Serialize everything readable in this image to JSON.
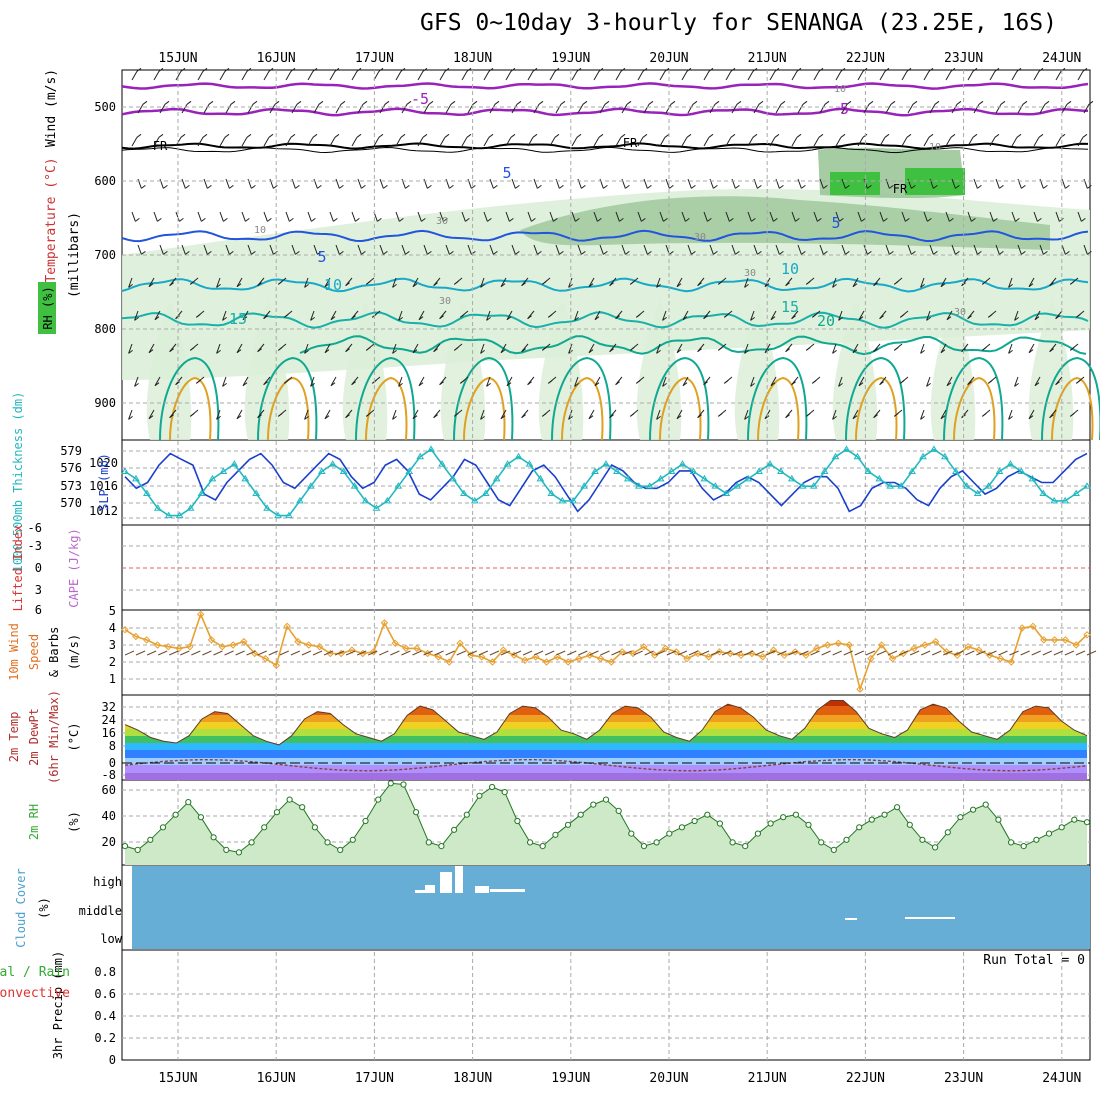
{
  "title": "GFS 0~10day 3-hourly for SENANGA (23.25E, 16S)",
  "dates": [
    "15JUN",
    "16JUN",
    "17JUN",
    "18JUN",
    "19JUN",
    "20JUN",
    "21JUN",
    "22JUN",
    "23JUN",
    "24JUN"
  ],
  "colors": {
    "temperature_cold": "#2255dd",
    "temperature_cyan": "#18a8c8",
    "temperature_warm": "#e0a020",
    "freezing_line": "#000000",
    "upper_cold": "#9922bb",
    "rh_fill": "#dcefd8",
    "rh_mid": "#9cc79a",
    "rh_high": "#40c040",
    "slp": "#1a3fcc",
    "thickness": "#22b8c0",
    "wind_speed": "#e8a030",
    "cloud_bg": "#66aed6",
    "grid": "#aaaaaa"
  },
  "panels": {
    "upper": {
      "axis_label_parts": [
        "Wind (m/s)",
        "Temperature (°C)",
        "RH (%)"
      ],
      "pressure_label": "(millibars)",
      "pressure_ticks": [
        "500",
        "600",
        "700",
        "800",
        "900"
      ],
      "contour_labels": [
        "-5",
        "-5",
        "FR",
        "FR",
        "FR",
        "5",
        "5",
        "5",
        "10",
        "10",
        "15",
        "15",
        "20"
      ],
      "rh_labels": [
        "10",
        "30",
        "30",
        "30",
        "30",
        "10",
        "10",
        "30"
      ]
    },
    "slp": {
      "label_left": "1000-500mb Thickness (dm)",
      "label_right": "SLP (mb)",
      "thickness_ticks": [
        "579",
        "576",
        "573",
        "570"
      ],
      "slp_ticks": [
        "1020",
        "1016",
        "1012"
      ]
    },
    "li": {
      "label_left": "Lifted Index",
      "label_right": "CAPE (J/kg)",
      "ticks": [
        "-6",
        "-3",
        "0",
        "3",
        "6"
      ]
    },
    "wind10": {
      "label_left": "10m Wind",
      "label_mid": "Speed",
      "label_right": "& Barbs",
      "units": "(m/s)",
      "ticks": [
        "5",
        "4",
        "3",
        "2",
        "1"
      ]
    },
    "temp2m": {
      "label_a": "2m Temp",
      "label_b": "2m DewPt",
      "label_c": "(6hr Min/Max)",
      "units": "(°C)",
      "ticks": [
        "32",
        "24",
        "16",
        "8",
        "0",
        "-8"
      ]
    },
    "rh2m": {
      "label": "2m RH",
      "units": "(%)",
      "ticks": [
        "60",
        "40",
        "20"
      ]
    },
    "cloud": {
      "label": "Cloud Cover",
      "units": "(%)",
      "levels": [
        "high",
        "middle",
        "low"
      ]
    },
    "precip": {
      "label_a": "Total / Rain",
      "label_b": "Convective",
      "label_c": "3hr Precip (mm)",
      "run_total": "Run Total = 0",
      "ticks": [
        "0.8",
        "0.6",
        "0.4",
        "0.2",
        "0"
      ]
    }
  },
  "chart_data": [
    {
      "type": "line",
      "title": "SLP (mb)",
      "x_start": "15JUN 00Z (approx, 3-hourly)",
      "ylim": [
        1009,
        1023
      ],
      "values": [
        1017,
        1015,
        1016,
        1019,
        1021,
        1020,
        1019,
        1014,
        1013,
        1016,
        1018,
        1020,
        1021,
        1019,
        1016,
        1015,
        1017,
        1019,
        1021,
        1020,
        1017,
        1015,
        1016,
        1019,
        1020,
        1018,
        1014,
        1013,
        1015,
        1017,
        1020,
        1019,
        1016,
        1013,
        1012,
        1015,
        1018,
        1019,
        1017,
        1014,
        1011,
        1013,
        1016,
        1019,
        1018,
        1016,
        1015,
        1015,
        1016,
        1018,
        1018,
        1015,
        1013,
        1014,
        1016,
        1017,
        1016,
        1014,
        1012,
        1014,
        1016,
        1017,
        1017,
        1015,
        1011,
        1012,
        1015,
        1016,
        1016,
        1015,
        1013,
        1012,
        1015,
        1017,
        1018,
        1016,
        1014,
        1015,
        1017,
        1018,
        1017,
        1016,
        1016,
        1018,
        1020,
        1021
      ]
    },
    {
      "type": "line",
      "title": "1000-500mb Thickness (dm)",
      "ylim": [
        569,
        580
      ],
      "values": [
        576,
        575,
        573,
        571,
        570,
        570,
        571,
        573,
        575,
        576,
        577,
        575,
        573,
        571,
        570,
        570,
        572,
        574,
        576,
        577,
        576,
        574,
        572,
        571,
        572,
        574,
        576,
        578,
        579,
        577,
        575,
        573,
        572,
        573,
        575,
        577,
        578,
        577,
        575,
        573,
        572,
        572,
        574,
        576,
        577,
        576,
        575,
        574,
        574,
        575,
        576,
        577,
        576,
        575,
        574,
        573,
        574,
        575,
        576,
        577,
        576,
        575,
        574,
        574,
        576,
        578,
        579,
        578,
        576,
        575,
        574,
        574,
        576,
        578,
        579,
        578,
        576,
        574,
        573,
        574,
        576,
        577,
        576,
        575,
        573,
        572,
        572,
        573,
        574
      ]
    },
    {
      "type": "line",
      "title": "10m Wind Speed (m/s)",
      "ylim": [
        0,
        5
      ],
      "values": [
        3.9,
        3.5,
        3.3,
        3.0,
        2.9,
        2.8,
        2.9,
        4.8,
        3.3,
        2.9,
        3.0,
        3.2,
        2.5,
        2.2,
        1.8,
        4.1,
        3.2,
        3.0,
        2.9,
        2.5,
        2.5,
        2.7,
        2.5,
        2.6,
        4.3,
        3.1,
        2.8,
        2.8,
        2.5,
        2.3,
        2.0,
        3.1,
        2.4,
        2.3,
        2.0,
        2.7,
        2.4,
        2.1,
        2.3,
        2.0,
        2.3,
        2.0,
        2.2,
        2.4,
        2.2,
        2.0,
        2.6,
        2.5,
        2.9,
        2.4,
        2.8,
        2.6,
        2.2,
        2.5,
        2.3,
        2.6,
        2.5,
        2.4,
        2.5,
        2.3,
        2.7,
        2.4,
        2.6,
        2.4,
        2.8,
        3.0,
        3.1,
        3.0,
        0.4,
        2.2,
        3.0,
        2.2,
        2.5,
        2.8,
        3.0,
        3.2,
        2.6,
        2.4,
        2.9,
        2.7,
        2.4,
        2.2,
        2.0,
        4.0,
        4.1,
        3.3,
        3.3,
        3.3,
        3.0,
        3.6
      ]
    },
    {
      "type": "area",
      "title": "2m RH (%)",
      "ylim": [
        0,
        66
      ],
      "values": [
        15,
        12,
        20,
        30,
        40,
        50,
        38,
        22,
        12,
        10,
        18,
        30,
        42,
        52,
        46,
        30,
        18,
        12,
        20,
        35,
        52,
        65,
        64,
        42,
        18,
        15,
        28,
        40,
        55,
        62,
        58,
        35,
        18,
        15,
        24,
        32,
        40,
        48,
        52,
        43,
        25,
        15,
        18,
        25,
        30,
        35,
        40,
        33,
        18,
        15,
        25,
        33,
        38,
        40,
        32,
        18,
        12,
        20,
        30,
        36,
        40,
        46,
        32,
        20,
        14,
        26,
        38,
        44,
        48,
        36,
        18,
        15,
        20,
        25,
        30,
        36,
        34
      ]
    },
    {
      "type": "area",
      "title": "2m Temp (°C)",
      "ylim": [
        -10,
        36
      ],
      "values": [
        20,
        17,
        13,
        11,
        10,
        14,
        23,
        27,
        26,
        20,
        14,
        11,
        9,
        14,
        23,
        27,
        26,
        20,
        15,
        13,
        11,
        15,
        25,
        30,
        28,
        22,
        16,
        14,
        12,
        16,
        26,
        30,
        29,
        24,
        17,
        15,
        12,
        17,
        26,
        30,
        29,
        24,
        16,
        13,
        11,
        17,
        27,
        31,
        29,
        24,
        17,
        14,
        12,
        18,
        28,
        33,
        33,
        27,
        18,
        15,
        13,
        17,
        28,
        31,
        29,
        22,
        16,
        14,
        12,
        17,
        27,
        30,
        29,
        22,
        17,
        14
      ]
    },
    {
      "type": "bar",
      "title": "Cloud Cover high (%)",
      "note": "high cloud blocks near 17-18 JUN; middle cloud traces near 22 JUN"
    },
    {
      "type": "bar",
      "title": "3hr Precip (mm)",
      "ylim": [
        0,
        0.9
      ],
      "values": []
    }
  ]
}
